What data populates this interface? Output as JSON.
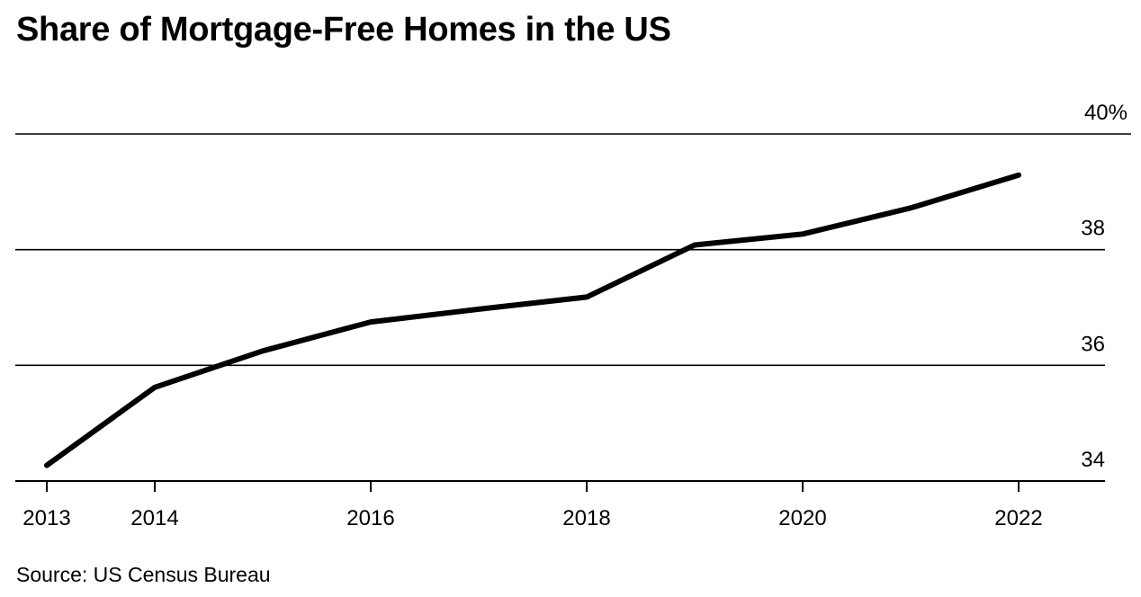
{
  "title": "Share of Mortgage-Free Homes in the US",
  "source": "Source: US Census Bureau",
  "chart_data": {
    "type": "line",
    "title": "Share of Mortgage-Free Homes in the US",
    "xlabel": "",
    "ylabel": "",
    "x": [
      2013,
      2014,
      2015,
      2016,
      2017,
      2018,
      2019,
      2020,
      2021,
      2022
    ],
    "series": [
      {
        "values": [
          34.27,
          35.62,
          36.25,
          36.75,
          36.97,
          37.18,
          38.08,
          38.27,
          38.72,
          39.29
        ]
      }
    ],
    "xlim": [
      2013,
      2022
    ],
    "ylim": [
      34,
      40
    ],
    "x_ticks": [
      2013,
      2014,
      2016,
      2018,
      2020,
      2022
    ],
    "x_tick_labels": [
      "2013",
      "2014",
      "2016",
      "2018",
      "2020",
      "2022"
    ],
    "y_ticks": [
      34,
      36,
      38,
      40
    ],
    "y_tick_labels": [
      "34",
      "36",
      "38",
      "40%"
    ],
    "grid": true,
    "line_color": "#000000",
    "grid_color": "#000000"
  }
}
